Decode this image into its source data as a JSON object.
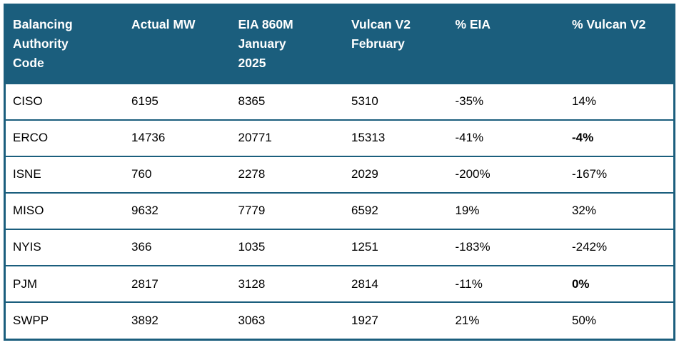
{
  "colors": {
    "header_bg": "#1B5E7D",
    "header_text": "#FFFFFF",
    "border": "#1B5E7D",
    "row_bg": "#FFFFFF",
    "body_text": "#000000",
    "page_bg": "#FFFFFF",
    "bold_emphasis_text": "#000000"
  },
  "chart_data": {
    "type": "table",
    "columns": [
      "Balancing Authority Code",
      "Actual MW",
      "EIA 860M January 2025",
      "Vulcan V2 February",
      "% EIA",
      "% Vulcan V2"
    ],
    "header_labels_display": [
      "Balancing\nAuthority\nCode",
      "Actual MW",
      "EIA 860M\nJanuary\n2025",
      "Vulcan V2\nFebruary",
      "% EIA",
      "% Vulcan V2"
    ],
    "rows": [
      {
        "cells": [
          "CISO",
          "6195",
          "8365",
          "5310",
          "-35%",
          "14%"
        ],
        "bold_cols": []
      },
      {
        "cells": [
          "ERCO",
          "14736",
          "20771",
          "15313",
          "-41%",
          "-4%"
        ],
        "bold_cols": [
          5
        ]
      },
      {
        "cells": [
          "ISNE",
          "760",
          "2278",
          "2029",
          "-200%",
          "-167%"
        ],
        "bold_cols": []
      },
      {
        "cells": [
          "MISO",
          "9632",
          "7779",
          "6592",
          "19%",
          "32%"
        ],
        "bold_cols": []
      },
      {
        "cells": [
          "NYIS",
          "366",
          "1035",
          "1251",
          "-183%",
          "-242%"
        ],
        "bold_cols": []
      },
      {
        "cells": [
          "PJM",
          "2817",
          "3128",
          "2814",
          "-11%",
          "0%"
        ],
        "bold_cols": [
          5
        ]
      },
      {
        "cells": [
          "SWPP",
          "3892",
          "3063",
          "1927",
          "21%",
          "50%"
        ],
        "bold_cols": []
      }
    ]
  }
}
